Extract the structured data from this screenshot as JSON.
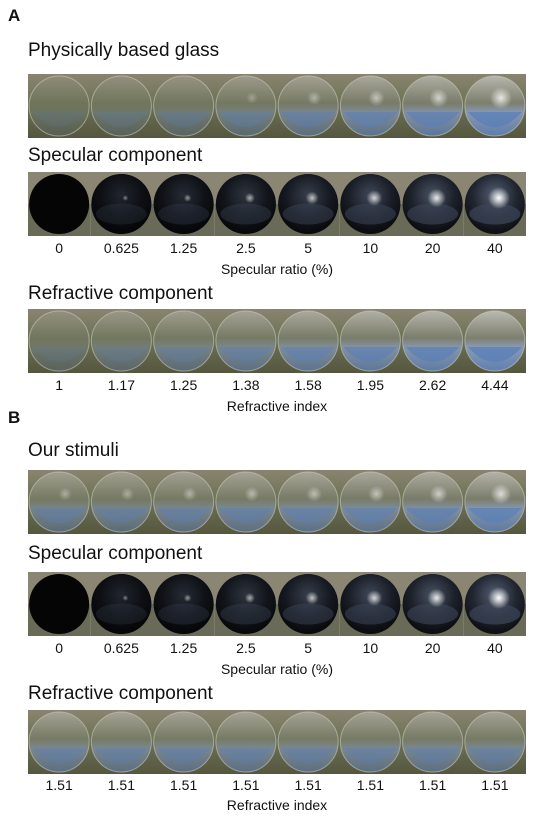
{
  "panels": [
    {
      "label": "A",
      "rows": [
        {
          "title": "Physically based glass",
          "kind": "glass",
          "levels": [
            0,
            0.1,
            0.2,
            0.35,
            0.5,
            0.65,
            0.8,
            1
          ]
        },
        {
          "title": "Specular component",
          "kind": "specular",
          "levels": [
            0,
            0.1,
            0.2,
            0.35,
            0.5,
            0.65,
            0.8,
            1
          ],
          "ticks": [
            "0",
            "0.625",
            "1.25",
            "2.5",
            "5",
            "10",
            "20",
            "40"
          ],
          "axis": "Specular ratio (%)"
        },
        {
          "title": "Refractive component",
          "kind": "refractive",
          "levels": [
            0,
            0.15,
            0.3,
            0.45,
            0.6,
            0.75,
            0.88,
            1
          ],
          "ticks": [
            "1",
            "1.17",
            "1.25",
            "1.38",
            "1.58",
            "1.95",
            "2.62",
            "4.44"
          ],
          "axis": "Refractive index"
        }
      ]
    },
    {
      "label": "B",
      "rows": [
        {
          "title": "Our stimuli",
          "kind": "glass",
          "levels": [
            0.45,
            0.45,
            0.5,
            0.55,
            0.6,
            0.65,
            0.75,
            0.9
          ]
        },
        {
          "title": "Specular component",
          "kind": "specular",
          "levels": [
            0,
            0.1,
            0.2,
            0.35,
            0.5,
            0.65,
            0.8,
            1
          ],
          "ticks": [
            "0",
            "0.625",
            "1.25",
            "2.5",
            "5",
            "10",
            "20",
            "40"
          ],
          "axis": "Specular ratio (%)"
        },
        {
          "title": "Refractive component",
          "kind": "refractive",
          "levels": [
            0.45,
            0.45,
            0.45,
            0.45,
            0.45,
            0.45,
            0.45,
            0.45
          ],
          "ticks": [
            "1.51",
            "1.51",
            "1.51",
            "1.51",
            "1.51",
            "1.51",
            "1.51",
            "1.51"
          ],
          "axis": "Refractive index"
        }
      ]
    }
  ]
}
